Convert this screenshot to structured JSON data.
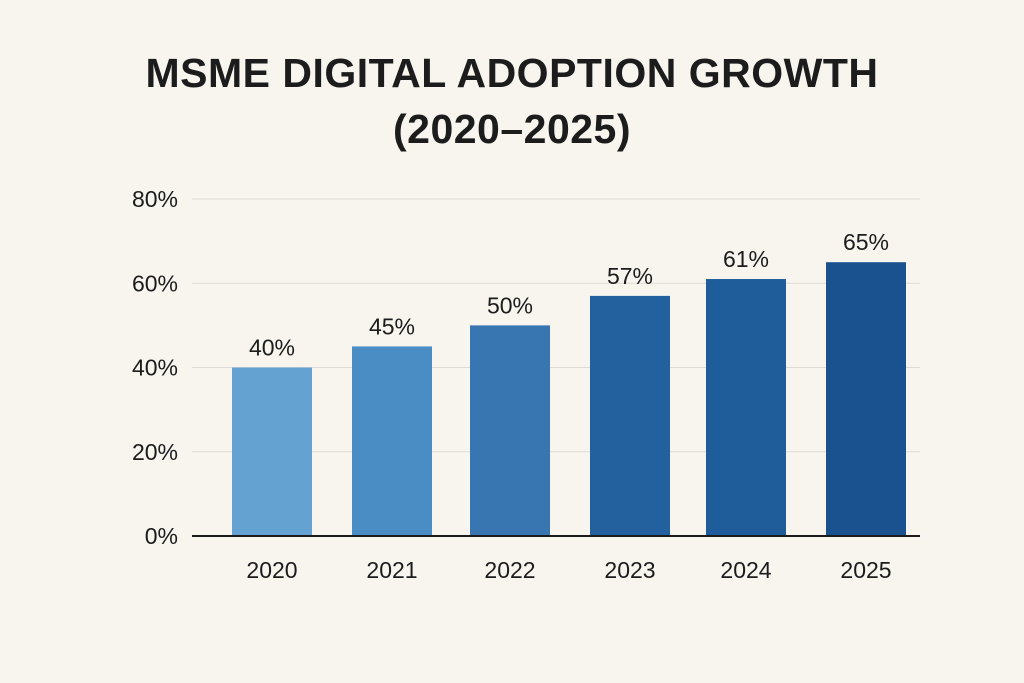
{
  "chart_data": {
    "type": "bar",
    "title_line1": "MSME DIGITAL ADOPTION GROWTH",
    "title_line2": "(2020–2025)",
    "title": "MSME DIGITAL ADOPTION GROWTH (2020–2025)",
    "xlabel": "",
    "ylabel": "",
    "categories": [
      "2020",
      "2021",
      "2022",
      "2023",
      "2024",
      "2025"
    ],
    "values": [
      40,
      45,
      50,
      57,
      61,
      65
    ],
    "data_labels": [
      "40%",
      "45%",
      "50%",
      "57%",
      "61%",
      "65%"
    ],
    "ylim": [
      0,
      80
    ],
    "yticks": [
      0,
      20,
      40,
      60,
      80
    ],
    "ytick_labels": [
      "0%",
      "20%",
      "40%",
      "60%",
      "80%"
    ],
    "grid": true,
    "legend": "none",
    "colors": [
      "#64a2d2",
      "#4a8cc4",
      "#3876b2",
      "#22609e",
      "#1e5c9a",
      "#1a5290"
    ]
  }
}
